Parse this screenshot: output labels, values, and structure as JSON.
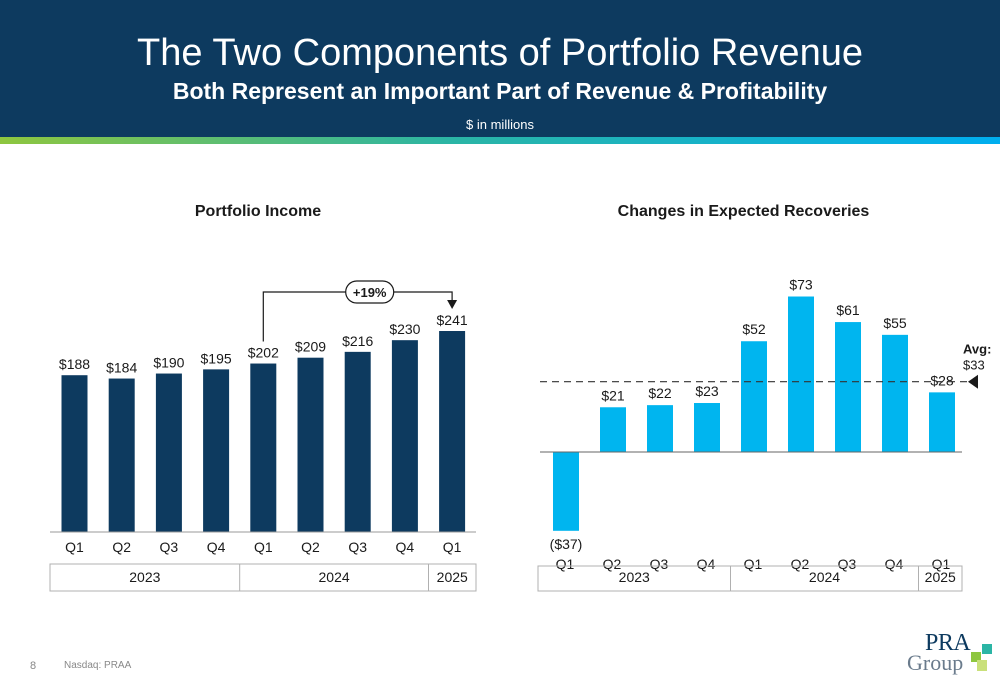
{
  "header": {
    "title": "The Two Components of Portfolio Revenue",
    "subtitle": "Both Represent an Important Part of Revenue & Profitability",
    "units": "$ in millions"
  },
  "colors": {
    "header_bg": "#0d3a5f",
    "navy_bar": "#0d3a5f",
    "cyan_bar": "#00b5ef",
    "stripe_start": "#8ec63f",
    "stripe_end": "#00aeef"
  },
  "footer": {
    "page_number": "8",
    "ticker": "Nasdaq: PRAA",
    "logo_line1": "PRA",
    "logo_line2": "Group"
  },
  "chart_data": [
    {
      "type": "bar",
      "title": "Portfolio Income",
      "categories": [
        "Q1",
        "Q2",
        "Q3",
        "Q4",
        "Q1",
        "Q2",
        "Q3",
        "Q4",
        "Q1"
      ],
      "values": [
        188,
        184,
        190,
        195,
        202,
        209,
        216,
        230,
        241
      ],
      "labels": [
        "$188",
        "$184",
        "$190",
        "$195",
        "$202",
        "$209",
        "$216",
        "$230",
        "$241"
      ],
      "groups": [
        {
          "label": "2023",
          "count": 4
        },
        {
          "label": "2024",
          "count": 4
        },
        {
          "label": "2025",
          "count": 1
        }
      ],
      "ylim": [
        0,
        260
      ],
      "annotation": {
        "text": "+19%",
        "from_index": 4,
        "to_index": 8
      },
      "grid": false
    },
    {
      "type": "bar",
      "title": "Changes in Expected Recoveries",
      "categories": [
        "Q1",
        "Q2",
        "Q3",
        "Q4",
        "Q1",
        "Q2",
        "Q3",
        "Q4",
        "Q1"
      ],
      "values": [
        -37,
        21,
        22,
        23,
        52,
        73,
        61,
        55,
        28
      ],
      "labels": [
        "($37)",
        "$21",
        "$22",
        "$23",
        "$52",
        "$73",
        "$61",
        "$55",
        "$28"
      ],
      "groups": [
        {
          "label": "2023",
          "count": 4
        },
        {
          "label": "2024",
          "count": 4
        },
        {
          "label": "2025",
          "count": 1
        }
      ],
      "ylim": [
        -37,
        73
      ],
      "average": {
        "value": 33,
        "label": "Avg:",
        "value_label": "$33"
      },
      "grid": false
    }
  ]
}
